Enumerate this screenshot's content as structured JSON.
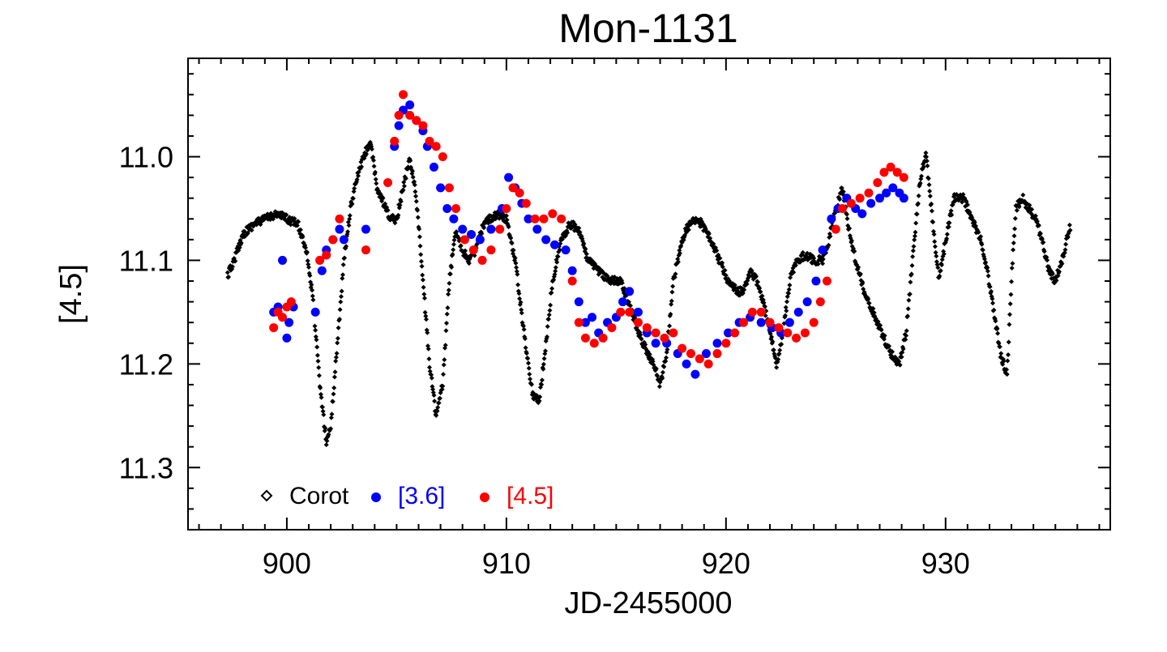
{
  "chart_data": {
    "type": "scatter",
    "title": "Mon-1131",
    "xlabel": "JD-2455000",
    "ylabel": "[4.5]",
    "xlim": [
      895.5,
      937.5
    ],
    "ylim": [
      11.36,
      10.905
    ],
    "y_inverted": true,
    "x_ticks": [
      900,
      910,
      920,
      930
    ],
    "x_tick_labels": [
      "900",
      "910",
      "920",
      "930"
    ],
    "y_ticks": [
      11.0,
      11.1,
      11.2,
      11.3
    ],
    "y_tick_labels": [
      "11.0",
      "11.1",
      "11.2",
      "11.3"
    ],
    "legend_position": "bottom-left",
    "series": [
      {
        "name": "Corot",
        "marker": "diamond",
        "color": "#000000",
        "curve": [
          [
            897.3,
            11.115
          ],
          [
            897.6,
            11.1
          ],
          [
            898.0,
            11.075
          ],
          [
            898.5,
            11.065
          ],
          [
            899.0,
            11.06
          ],
          [
            899.5,
            11.055
          ],
          [
            900.0,
            11.06
          ],
          [
            900.5,
            11.065
          ],
          [
            900.9,
            11.09
          ],
          [
            901.2,
            11.14
          ],
          [
            901.5,
            11.22
          ],
          [
            901.8,
            11.275
          ],
          [
            902.0,
            11.26
          ],
          [
            902.3,
            11.18
          ],
          [
            902.6,
            11.1
          ],
          [
            902.9,
            11.05
          ],
          [
            903.2,
            11.02
          ],
          [
            903.5,
            11.0
          ],
          [
            903.8,
            10.985
          ],
          [
            904.1,
            11.03
          ],
          [
            904.4,
            11.045
          ],
          [
            904.7,
            11.06
          ],
          [
            905.0,
            11.06
          ],
          [
            905.3,
            11.03
          ],
          [
            905.6,
            11.0
          ],
          [
            905.9,
            11.04
          ],
          [
            906.2,
            11.12
          ],
          [
            906.5,
            11.2
          ],
          [
            906.8,
            11.25
          ],
          [
            907.1,
            11.22
          ],
          [
            907.4,
            11.12
          ],
          [
            907.7,
            11.07
          ],
          [
            908.0,
            11.09
          ],
          [
            908.3,
            11.1
          ],
          [
            908.6,
            11.09
          ],
          [
            908.9,
            11.07
          ],
          [
            909.2,
            11.06
          ],
          [
            909.6,
            11.055
          ],
          [
            910.0,
            11.06
          ],
          [
            910.4,
            11.1
          ],
          [
            910.8,
            11.17
          ],
          [
            911.2,
            11.23
          ],
          [
            911.5,
            11.235
          ],
          [
            911.8,
            11.18
          ],
          [
            912.1,
            11.12
          ],
          [
            912.5,
            11.08
          ],
          [
            912.9,
            11.065
          ],
          [
            913.3,
            11.07
          ],
          [
            913.7,
            11.1
          ],
          [
            914.2,
            11.11
          ],
          [
            914.7,
            11.12
          ],
          [
            915.2,
            11.12
          ],
          [
            915.7,
            11.15
          ],
          [
            916.2,
            11.18
          ],
          [
            916.7,
            11.2
          ],
          [
            917.0,
            11.22
          ],
          [
            917.3,
            11.19
          ],
          [
            917.6,
            11.12
          ],
          [
            917.9,
            11.09
          ],
          [
            918.2,
            11.07
          ],
          [
            918.6,
            11.06
          ],
          [
            918.9,
            11.065
          ],
          [
            919.3,
            11.08
          ],
          [
            919.7,
            11.1
          ],
          [
            920.1,
            11.12
          ],
          [
            920.5,
            11.13
          ],
          [
            920.8,
            11.13
          ],
          [
            921.1,
            11.11
          ],
          [
            921.4,
            11.12
          ],
          [
            921.7,
            11.14
          ],
          [
            922.0,
            11.17
          ],
          [
            922.3,
            11.2
          ],
          [
            922.6,
            11.17
          ],
          [
            922.9,
            11.12
          ],
          [
            923.2,
            11.1
          ],
          [
            923.6,
            11.095
          ],
          [
            924.0,
            11.1
          ],
          [
            924.4,
            11.1
          ],
          [
            924.7,
            11.08
          ],
          [
            925.0,
            11.05
          ],
          [
            925.3,
            11.03
          ],
          [
            925.6,
            11.07
          ],
          [
            925.9,
            11.1
          ],
          [
            926.3,
            11.13
          ],
          [
            926.7,
            11.15
          ],
          [
            927.1,
            11.17
          ],
          [
            927.5,
            11.19
          ],
          [
            927.9,
            11.2
          ],
          [
            928.2,
            11.17
          ],
          [
            928.5,
            11.1
          ],
          [
            928.8,
            11.03
          ],
          [
            929.1,
            10.995
          ],
          [
            929.4,
            11.06
          ],
          [
            929.7,
            11.12
          ],
          [
            930.0,
            11.08
          ],
          [
            930.4,
            11.04
          ],
          [
            930.8,
            11.04
          ],
          [
            931.2,
            11.06
          ],
          [
            931.6,
            11.08
          ],
          [
            931.9,
            11.11
          ],
          [
            932.2,
            11.15
          ],
          [
            932.5,
            11.19
          ],
          [
            932.8,
            11.21
          ],
          [
            933.0,
            11.12
          ],
          [
            933.2,
            11.05
          ],
          [
            933.5,
            11.04
          ],
          [
            933.8,
            11.05
          ],
          [
            934.1,
            11.06
          ],
          [
            934.4,
            11.08
          ],
          [
            934.7,
            11.11
          ],
          [
            935.0,
            11.12
          ],
          [
            935.3,
            11.1
          ],
          [
            935.7,
            11.065
          ]
        ]
      },
      {
        "name": "[3.6]",
        "marker": "filled-circle",
        "color": "#0000ff",
        "points": [
          [
            899.4,
            11.15
          ],
          [
            899.6,
            11.145
          ],
          [
            899.8,
            11.1
          ],
          [
            900.0,
            11.175
          ],
          [
            900.1,
            11.16
          ],
          [
            900.3,
            11.145
          ],
          [
            901.3,
            11.15
          ],
          [
            901.6,
            11.11
          ],
          [
            901.8,
            11.09
          ],
          [
            902.1,
            11.08
          ],
          [
            902.4,
            11.07
          ],
          [
            902.6,
            11.08
          ],
          [
            903.6,
            11.07
          ],
          [
            904.9,
            10.99
          ],
          [
            905.1,
            10.97
          ],
          [
            905.3,
            10.955
          ],
          [
            905.6,
            10.95
          ],
          [
            905.9,
            10.965
          ],
          [
            906.2,
            10.975
          ],
          [
            906.4,
            10.99
          ],
          [
            906.7,
            11.01
          ],
          [
            907.0,
            11.03
          ],
          [
            907.3,
            11.05
          ],
          [
            907.6,
            11.06
          ],
          [
            908.0,
            11.07
          ],
          [
            908.4,
            11.075
          ],
          [
            908.8,
            11.08
          ],
          [
            909.3,
            11.07
          ],
          [
            909.8,
            11.05
          ],
          [
            910.1,
            11.02
          ],
          [
            910.4,
            11.03
          ],
          [
            910.7,
            11.045
          ],
          [
            911.0,
            11.06
          ],
          [
            911.4,
            11.07
          ],
          [
            911.8,
            11.08
          ],
          [
            912.2,
            11.085
          ],
          [
            912.7,
            11.09
          ],
          [
            913.0,
            11.11
          ],
          [
            913.3,
            11.14
          ],
          [
            913.6,
            11.16
          ],
          [
            913.9,
            11.155
          ],
          [
            914.2,
            11.17
          ],
          [
            914.6,
            11.16
          ],
          [
            915.0,
            11.155
          ],
          [
            915.3,
            11.14
          ],
          [
            915.6,
            11.13
          ],
          [
            916.0,
            11.15
          ],
          [
            916.4,
            11.17
          ],
          [
            916.8,
            11.18
          ],
          [
            917.3,
            11.18
          ],
          [
            917.8,
            11.19
          ],
          [
            918.2,
            11.2
          ],
          [
            918.6,
            11.21
          ],
          [
            919.1,
            11.19
          ],
          [
            919.6,
            11.18
          ],
          [
            920.1,
            11.17
          ],
          [
            920.6,
            11.16
          ],
          [
            921.1,
            11.155
          ],
          [
            921.6,
            11.16
          ],
          [
            922.1,
            11.165
          ],
          [
            922.5,
            11.17
          ],
          [
            922.9,
            11.16
          ],
          [
            923.3,
            11.15
          ],
          [
            923.7,
            11.14
          ],
          [
            924.1,
            11.12
          ],
          [
            924.4,
            11.09
          ],
          [
            924.8,
            11.06
          ],
          [
            925.1,
            11.05
          ],
          [
            925.5,
            11.04
          ],
          [
            925.9,
            11.05
          ],
          [
            926.2,
            11.055
          ],
          [
            926.6,
            11.045
          ],
          [
            927.0,
            11.04
          ],
          [
            927.3,
            11.035
          ],
          [
            927.6,
            11.03
          ],
          [
            927.9,
            11.035
          ],
          [
            928.1,
            11.04
          ]
        ]
      },
      {
        "name": "[4.5]",
        "marker": "filled-circle",
        "color": "#ff0000",
        "points": [
          [
            899.4,
            11.165
          ],
          [
            899.6,
            11.15
          ],
          [
            899.8,
            11.155
          ],
          [
            900.0,
            11.145
          ],
          [
            900.2,
            11.14
          ],
          [
            901.5,
            11.1
          ],
          [
            901.8,
            11.095
          ],
          [
            902.1,
            11.08
          ],
          [
            902.4,
            11.06
          ],
          [
            903.6,
            11.09
          ],
          [
            904.6,
            11.025
          ],
          [
            904.9,
            10.985
          ],
          [
            905.1,
            10.96
          ],
          [
            905.3,
            10.94
          ],
          [
            905.6,
            10.96
          ],
          [
            905.9,
            10.965
          ],
          [
            906.2,
            10.97
          ],
          [
            906.5,
            10.985
          ],
          [
            906.8,
            10.99
          ],
          [
            907.1,
            11.0
          ],
          [
            907.4,
            11.03
          ],
          [
            907.7,
            11.05
          ],
          [
            908.1,
            11.08
          ],
          [
            908.5,
            11.09
          ],
          [
            908.9,
            11.1
          ],
          [
            909.3,
            11.09
          ],
          [
            909.7,
            11.07
          ],
          [
            910.0,
            11.05
          ],
          [
            910.3,
            11.03
          ],
          [
            910.6,
            11.035
          ],
          [
            910.9,
            11.045
          ],
          [
            911.3,
            11.06
          ],
          [
            911.7,
            11.06
          ],
          [
            912.1,
            11.055
          ],
          [
            912.5,
            11.06
          ],
          [
            913.0,
            11.12
          ],
          [
            913.3,
            11.16
          ],
          [
            913.6,
            11.175
          ],
          [
            914.0,
            11.18
          ],
          [
            914.4,
            11.175
          ],
          [
            914.8,
            11.165
          ],
          [
            915.2,
            11.15
          ],
          [
            915.6,
            11.15
          ],
          [
            916.0,
            11.16
          ],
          [
            916.4,
            11.165
          ],
          [
            916.8,
            11.17
          ],
          [
            917.2,
            11.175
          ],
          [
            917.6,
            11.17
          ],
          [
            918.0,
            11.185
          ],
          [
            918.4,
            11.19
          ],
          [
            918.8,
            11.195
          ],
          [
            919.2,
            11.2
          ],
          [
            919.6,
            11.19
          ],
          [
            920.0,
            11.18
          ],
          [
            920.4,
            11.17
          ],
          [
            920.8,
            11.16
          ],
          [
            921.2,
            11.15
          ],
          [
            921.6,
            11.15
          ],
          [
            922.0,
            11.16
          ],
          [
            922.4,
            11.165
          ],
          [
            922.8,
            11.17
          ],
          [
            923.2,
            11.175
          ],
          [
            923.6,
            11.17
          ],
          [
            924.0,
            11.16
          ],
          [
            924.3,
            11.14
          ],
          [
            924.6,
            11.12
          ],
          [
            925.0,
            11.07
          ],
          [
            925.3,
            11.05
          ],
          [
            925.7,
            11.045
          ],
          [
            926.1,
            11.04
          ],
          [
            926.5,
            11.035
          ],
          [
            926.9,
            11.025
          ],
          [
            927.2,
            11.015
          ],
          [
            927.5,
            11.01
          ],
          [
            927.8,
            11.015
          ],
          [
            928.1,
            11.02
          ]
        ]
      }
    ]
  }
}
